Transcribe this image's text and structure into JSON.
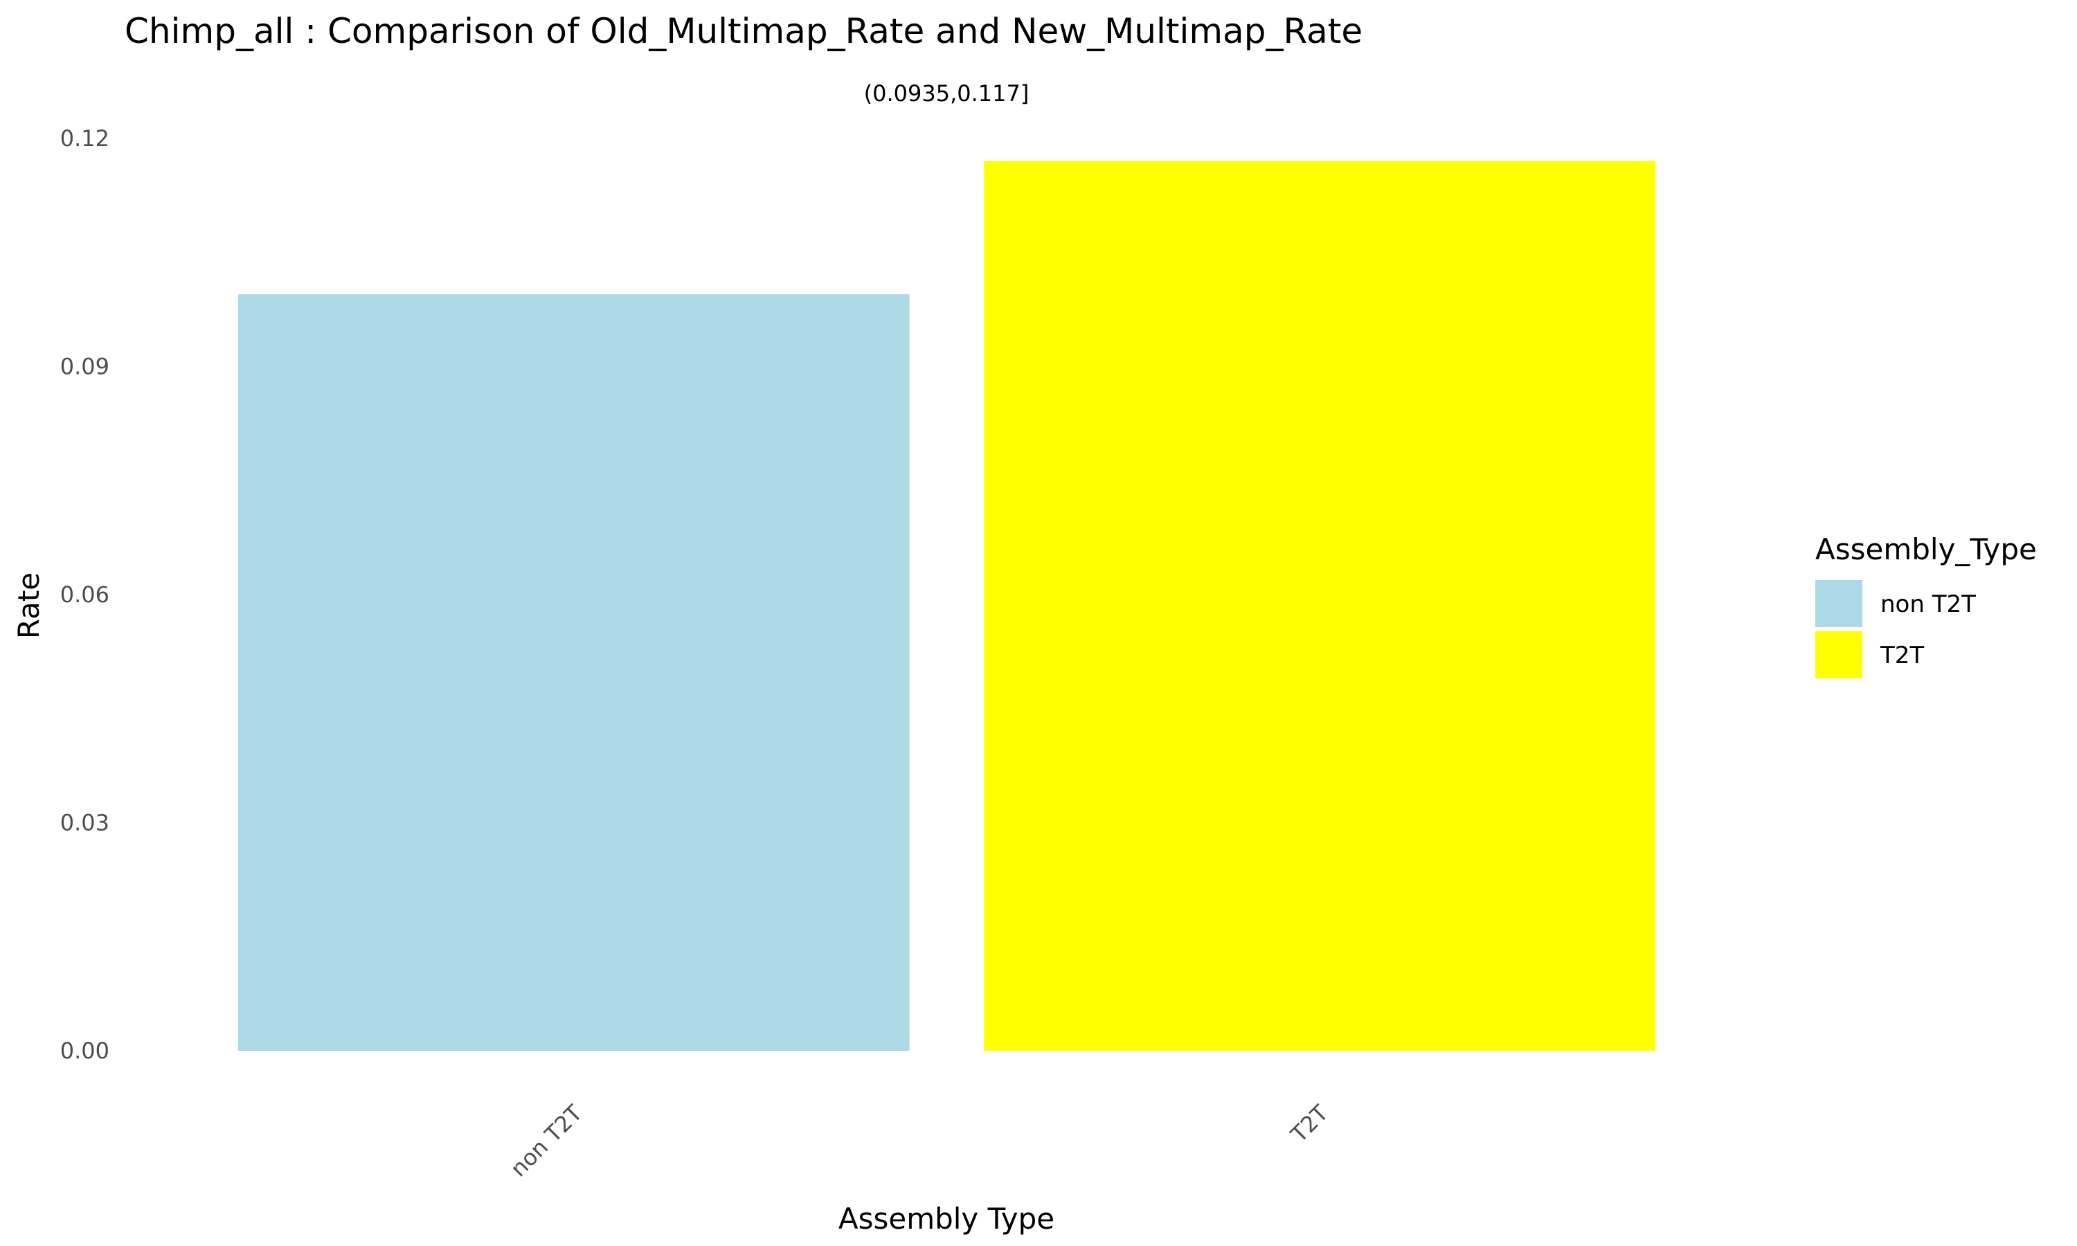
{
  "chart_data": {
    "type": "bar",
    "title": "Chimp_all : Comparison of Old_Multimap_Rate and New_Multimap_Rate",
    "subtitle": "(0.0935,0.117]",
    "xlabel": "Assembly Type",
    "ylabel": "Rate",
    "categories": [
      "non T2T",
      "T2T"
    ],
    "values": [
      0.0995,
      0.117
    ],
    "colors": [
      "#add8e6",
      "#ffff00"
    ],
    "ylim": [
      0,
      0.12
    ],
    "yticks": [
      0.0,
      0.03,
      0.06,
      0.09,
      0.12
    ],
    "ytick_labels": [
      "0.00",
      "0.03",
      "0.06",
      "0.09",
      "0.12"
    ],
    "grid": false,
    "legend": {
      "title": "Assembly_Type",
      "position": "right",
      "items": [
        {
          "label": "non T2T",
          "color": "#add8e6"
        },
        {
          "label": "T2T",
          "color": "#ffff00"
        }
      ]
    }
  }
}
